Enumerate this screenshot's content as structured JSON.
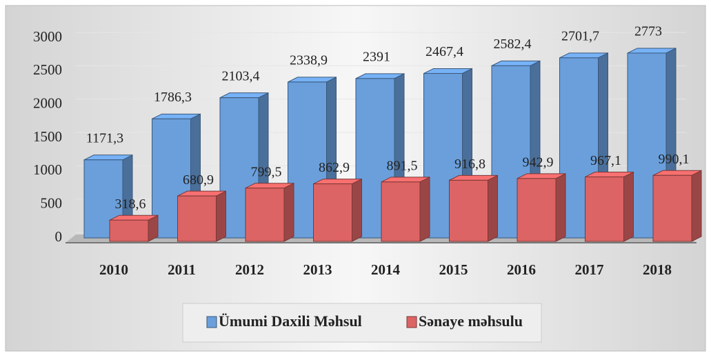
{
  "chart_data": {
    "type": "bar",
    "categories": [
      "2010",
      "2011",
      "2012",
      "2013",
      "2014",
      "2015",
      "2016",
      "2017",
      "2018"
    ],
    "series": [
      {
        "name": "Ümumi  Daxili Məhsul",
        "color": "#6a9fdc",
        "values": [
          1171.3,
          1786.3,
          2103.4,
          2338.9,
          2391,
          2467.4,
          2582.4,
          2701.7,
          2773
        ],
        "value_labels": [
          "1171,3",
          "1786,3",
          "2103,4",
          "2338,9",
          "2391",
          "2467,4",
          "2582,4",
          "2701,7",
          "2773"
        ]
      },
      {
        "name": "Sənaye məhsulu",
        "color": "#dd6464",
        "values": [
          318.6,
          680.9,
          799.5,
          862.9,
          891.5,
          916.8,
          942.9,
          967.1,
          990.1
        ],
        "value_labels": [
          "318,6",
          "680,9",
          "799,5",
          "862,9",
          "891,5",
          "916,8",
          "942,9",
          "967,1",
          "990,1"
        ]
      }
    ],
    "ylim": [
      0,
      3000
    ],
    "yticks": [
      0,
      500,
      1000,
      1500,
      2000,
      2500,
      3000
    ],
    "grid": true,
    "legend": "bottom"
  }
}
